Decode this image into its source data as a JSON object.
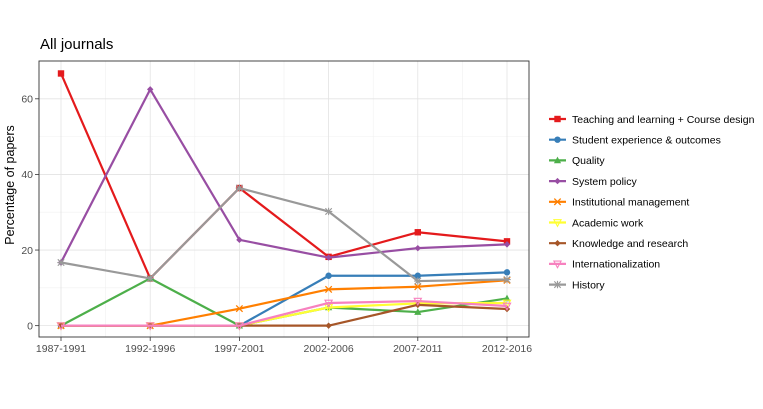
{
  "chart_data": {
    "type": "line",
    "title": "All journals",
    "xlabel": "",
    "ylabel": "Percentage of papers",
    "ylim": [
      -3,
      70
    ],
    "yticks": [
      0,
      20,
      40,
      60
    ],
    "grid": true,
    "legend_position": "right",
    "categories": [
      "1987-1991",
      "1992-1996",
      "1997-2001",
      "2002-2006",
      "2007-2011",
      "2012-2016"
    ],
    "series": [
      {
        "name": "Teaching and learning + Course design",
        "color": "#e41a1c",
        "marker": "square",
        "values": [
          66.7,
          12.5,
          36.4,
          18.2,
          24.7,
          22.3
        ]
      },
      {
        "name": "Student experience & outcomes",
        "color": "#377eb8",
        "marker": "circle",
        "values": [
          0,
          0,
          0,
          13.2,
          13.2,
          14.1
        ]
      },
      {
        "name": "Quality",
        "color": "#4daf4a",
        "marker": "triangle",
        "values": [
          0,
          12.5,
          0,
          4.8,
          3.6,
          7.2
        ]
      },
      {
        "name": "System policy",
        "color": "#984ea3",
        "marker": "diamond",
        "values": [
          16.7,
          62.5,
          22.7,
          18.0,
          20.5,
          21.5
        ]
      },
      {
        "name": "Institutional management",
        "color": "#ff7f00",
        "marker": "cross",
        "values": [
          0,
          0,
          4.5,
          9.6,
          10.3,
          12.0
        ]
      },
      {
        "name": "Academic work",
        "color": "#ffff33",
        "marker": "triangle-down",
        "values": [
          0,
          0,
          0,
          4.8,
          5.9,
          6.0
        ]
      },
      {
        "name": "Knowledge and research",
        "color": "#a65628",
        "marker": "diamond",
        "values": [
          0,
          0,
          0,
          0,
          5.5,
          4.4
        ]
      },
      {
        "name": "Internationalization",
        "color": "#f781bf",
        "marker": "triangle-down",
        "values": [
          0,
          0,
          0,
          6.0,
          6.5,
          5.2
        ]
      },
      {
        "name": "History",
        "color": "#999999",
        "marker": "star",
        "values": [
          16.7,
          12.5,
          36.4,
          30.2,
          11.8,
          12.2
        ]
      }
    ]
  }
}
